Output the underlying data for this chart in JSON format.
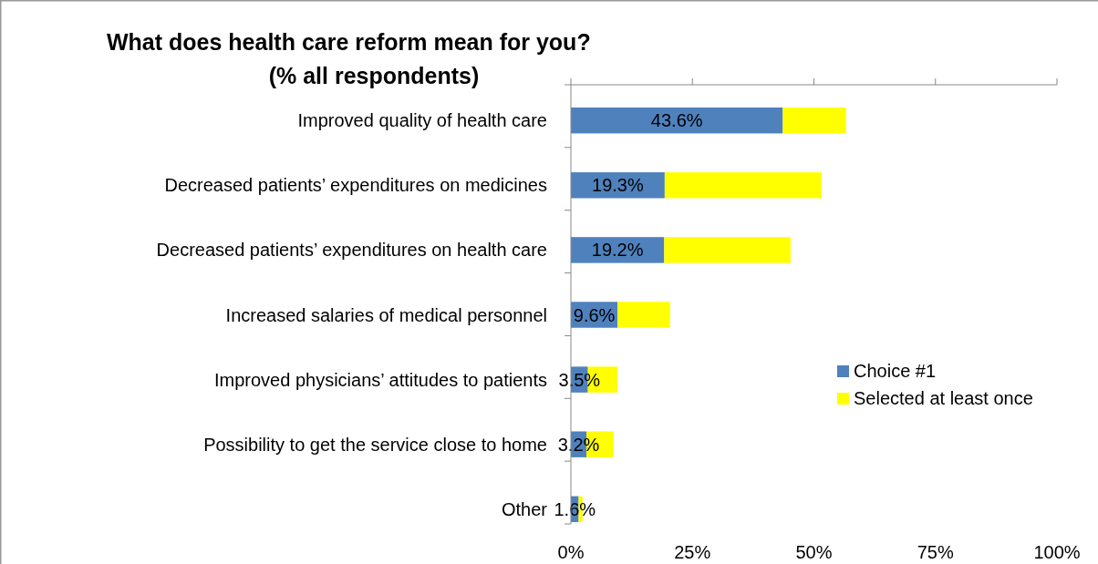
{
  "chart_data": {
    "type": "bar",
    "orientation": "horizontal",
    "stacked": true,
    "title": "What does health care reform mean for you?\n(% all respondents)",
    "categories": [
      "Improved quality of health care",
      "Decreased patients’ expenditures on medicines",
      "Decreased patients’ expenditures on health care",
      "Increased salaries of medical personnel",
      "Improved physicians’ attitudes to patients",
      "Possibility to get the service close to home",
      "Other"
    ],
    "series": [
      {
        "name": "Choice #1",
        "color": "#4f81bd",
        "values": [
          43.6,
          19.3,
          19.2,
          9.6,
          3.5,
          3.2,
          1.6
        ],
        "value_labels": [
          "43.6%",
          "19.3%",
          "19.2%",
          "9.6%",
          "3.5%",
          "3.2%",
          "1.6%"
        ]
      },
      {
        "name": "Selected at least once",
        "color": "#ffff00",
        "values": [
          13.0,
          32.3,
          26.0,
          10.8,
          6.1,
          5.6,
          0.8
        ]
      }
    ],
    "xlim": [
      0,
      100
    ],
    "xticks": [
      {
        "value": 0,
        "label": "0%"
      },
      {
        "value": 25,
        "label": "25%"
      },
      {
        "value": 50,
        "label": "50%"
      },
      {
        "value": 75,
        "label": "75%"
      },
      {
        "value": 100,
        "label": "100%"
      }
    ],
    "legend": "right",
    "grid": false
  }
}
